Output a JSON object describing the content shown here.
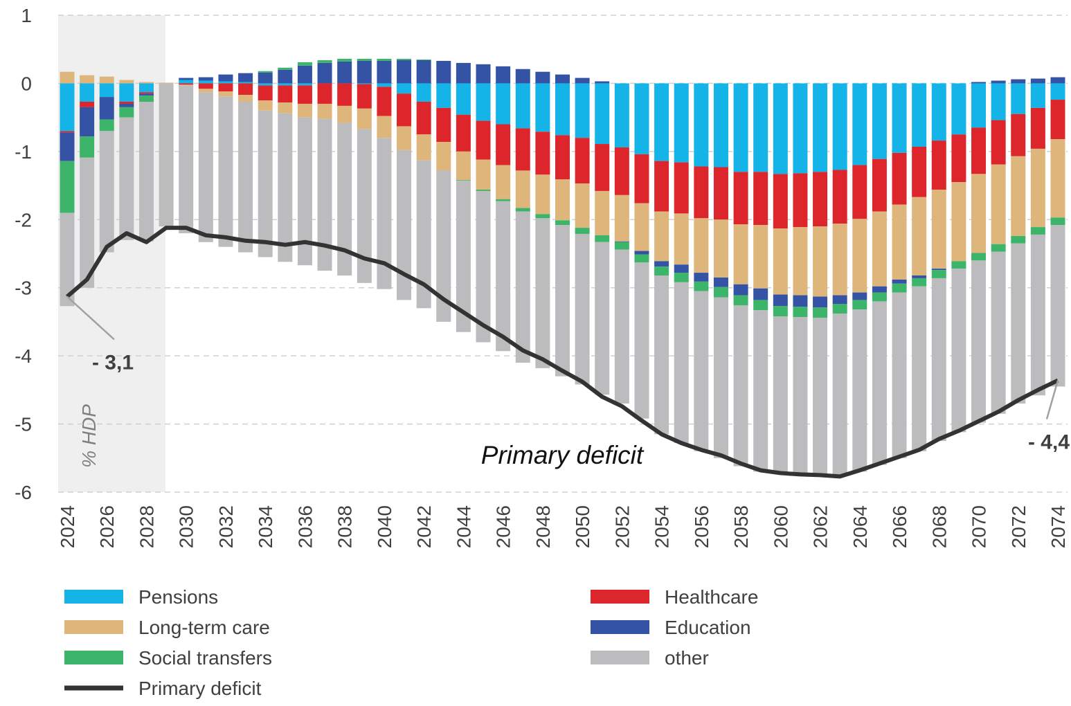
{
  "chart_data": {
    "type": "stacked_bar_line",
    "y_label": "% HDP",
    "annotation": "Primary deficit",
    "categories": [
      "2024",
      null,
      "2026",
      null,
      "2028",
      null,
      "2030",
      null,
      "2032",
      null,
      "2034",
      null,
      "2036",
      null,
      "2038",
      null,
      "2040",
      null,
      "2042",
      null,
      "2044",
      null,
      "2046",
      null,
      "2048",
      null,
      "2050",
      null,
      "2052",
      null,
      "2054",
      null,
      "2056",
      null,
      "2058",
      null,
      "2060",
      null,
      "2062",
      null,
      "2064",
      null,
      "2066",
      null,
      "2068",
      null,
      "2070",
      null,
      "2072",
      null,
      "2074"
    ],
    "ylim": [
      -6,
      1
    ],
    "yticks": [
      -6,
      -5,
      -4,
      -3,
      -2,
      -1,
      0,
      1
    ],
    "grid": true,
    "series": [
      {
        "name": "Pensions",
        "color": "#15b4e8",
        "values": [
          -0.7,
          -0.27,
          -0.2,
          -0.27,
          -0.13,
          0,
          0.05,
          0.04,
          0.03,
          0.02,
          -0.03,
          -0.03,
          -0.03,
          0,
          0,
          -0.01,
          -0.05,
          -0.15,
          -0.27,
          -0.36,
          -0.46,
          -0.55,
          -0.6,
          -0.66,
          -0.71,
          -0.76,
          -0.8,
          -0.89,
          -0.94,
          -1.04,
          -1.14,
          -1.16,
          -1.22,
          -1.23,
          -1.3,
          -1.3,
          -1.33,
          -1.32,
          -1.3,
          -1.27,
          -1.2,
          -1.11,
          -1.02,
          -0.93,
          -0.84,
          -0.75,
          -0.65,
          -0.54,
          -0.45,
          -0.36,
          -0.24
        ]
      },
      {
        "name": "Healthcare",
        "color": "#dc262b",
        "values": [
          -0.02,
          -0.08,
          0,
          -0.03,
          -0.02,
          0,
          -0.02,
          -0.08,
          -0.12,
          -0.17,
          -0.22,
          -0.25,
          -0.27,
          -0.3,
          -0.33,
          -0.36,
          -0.43,
          -0.48,
          -0.48,
          -0.5,
          -0.54,
          -0.57,
          -0.6,
          -0.62,
          -0.63,
          -0.65,
          -0.67,
          -0.69,
          -0.7,
          -0.72,
          -0.74,
          -0.75,
          -0.76,
          -0.77,
          -0.77,
          -0.78,
          -0.8,
          -0.79,
          -0.8,
          -0.79,
          -0.79,
          -0.77,
          -0.76,
          -0.74,
          -0.72,
          -0.7,
          -0.68,
          -0.65,
          -0.62,
          -0.6,
          -0.58
        ]
      },
      {
        "name": "Long-term care",
        "color": "#deb67c",
        "values": [
          0.17,
          0.12,
          0.1,
          0.05,
          0.02,
          0.01,
          -0.01,
          -0.05,
          -0.07,
          -0.1,
          -0.15,
          -0.16,
          -0.2,
          -0.22,
          -0.25,
          -0.3,
          -0.32,
          -0.35,
          -0.38,
          -0.42,
          -0.42,
          -0.44,
          -0.5,
          -0.55,
          -0.58,
          -0.6,
          -0.65,
          -0.65,
          -0.68,
          -0.7,
          -0.73,
          -0.75,
          -0.8,
          -0.85,
          -0.88,
          -0.93,
          -0.97,
          -1.0,
          -1.03,
          -1.05,
          -1.08,
          -1.1,
          -1.1,
          -1.15,
          -1.16,
          -1.16,
          -1.16,
          -1.17,
          -1.17,
          -1.15,
          -1.15
        ]
      },
      {
        "name": "Education",
        "color": "#3553a5",
        "values": [
          -0.42,
          -0.43,
          -0.33,
          -0.05,
          -0.03,
          0,
          0.03,
          0.05,
          0.1,
          0.13,
          0.16,
          0.2,
          0.26,
          0.3,
          0.32,
          0.33,
          0.33,
          0.34,
          0.34,
          0.33,
          0.3,
          0.28,
          0.25,
          0.21,
          0.17,
          0.13,
          0.08,
          0.03,
          -0.01,
          -0.05,
          -0.08,
          -0.12,
          -0.13,
          -0.14,
          -0.16,
          -0.17,
          -0.17,
          -0.17,
          -0.16,
          -0.13,
          -0.11,
          -0.09,
          -0.06,
          -0.04,
          -0.02,
          0,
          0.02,
          0.04,
          0.06,
          0.07,
          0.09
        ]
      },
      {
        "name": "Social transfers",
        "color": "#3cb46a",
        "values": [
          -0.76,
          -0.31,
          -0.17,
          -0.15,
          -0.09,
          0,
          0,
          0,
          0,
          0,
          0.02,
          0.03,
          0.05,
          0.04,
          0.04,
          0.03,
          0.03,
          0.02,
          0.01,
          0,
          -0.01,
          -0.02,
          -0.03,
          -0.05,
          -0.06,
          -0.07,
          -0.09,
          -0.1,
          -0.11,
          -0.12,
          -0.13,
          -0.14,
          -0.14,
          -0.15,
          -0.15,
          -0.15,
          -0.15,
          -0.15,
          -0.15,
          -0.14,
          -0.14,
          -0.13,
          -0.13,
          -0.12,
          -0.12,
          -0.11,
          -0.11,
          -0.11,
          -0.11,
          -0.11,
          -0.11
        ]
      },
      {
        "name": "other",
        "color": "#bcbcbe",
        "values": [
          -1.37,
          -1.91,
          -1.78,
          -1.8,
          -2.05,
          -2.1,
          -2.17,
          -2.2,
          -2.21,
          -2.21,
          -2.15,
          -2.18,
          -2.17,
          -2.23,
          -2.24,
          -2.26,
          -2.22,
          -2.2,
          -2.17,
          -2.22,
          -2.22,
          -2.22,
          -2.2,
          -2.22,
          -2.2,
          -2.22,
          -2.21,
          -2.24,
          -2.26,
          -2.29,
          -2.33,
          -2.36,
          -2.35,
          -2.36,
          -2.36,
          -2.37,
          -2.31,
          -2.32,
          -2.32,
          -2.38,
          -2.38,
          -2.4,
          -2.43,
          -2.42,
          -2.39,
          -2.4,
          -2.38,
          -2.38,
          -2.35,
          -2.36,
          -2.37
        ]
      },
      {
        "name": "Primary deficit",
        "color": "#333333",
        "kind": "line",
        "values": [
          -3.13,
          -2.88,
          -2.4,
          -2.2,
          -2.33,
          -2.12,
          -2.12,
          -2.23,
          -2.26,
          -2.31,
          -2.33,
          -2.37,
          -2.33,
          -2.38,
          -2.45,
          -2.57,
          -2.64,
          -2.8,
          -2.95,
          -3.17,
          -3.36,
          -3.55,
          -3.72,
          -3.92,
          -4.05,
          -4.22,
          -4.38,
          -4.6,
          -4.74,
          -4.95,
          -5.15,
          -5.28,
          -5.38,
          -5.46,
          -5.58,
          -5.68,
          -5.72,
          -5.74,
          -5.75,
          -5.77,
          -5.68,
          -5.58,
          -5.48,
          -5.38,
          -5.22,
          -5.1,
          -4.96,
          -4.82,
          -4.65,
          -4.5,
          -4.36
        ],
        "value_labels": [
          "- 3,1",
          null,
          null,
          null,
          null,
          null,
          null,
          null,
          null,
          null,
          null,
          null,
          null,
          null,
          null,
          null,
          null,
          null,
          null,
          null,
          null,
          null,
          null,
          null,
          null,
          null,
          null,
          null,
          null,
          null,
          null,
          null,
          null,
          null,
          null,
          null,
          null,
          null,
          null,
          null,
          null,
          null,
          null,
          null,
          null,
          null,
          null,
          null,
          null,
          null,
          "- 4,4"
        ]
      }
    ]
  }
}
